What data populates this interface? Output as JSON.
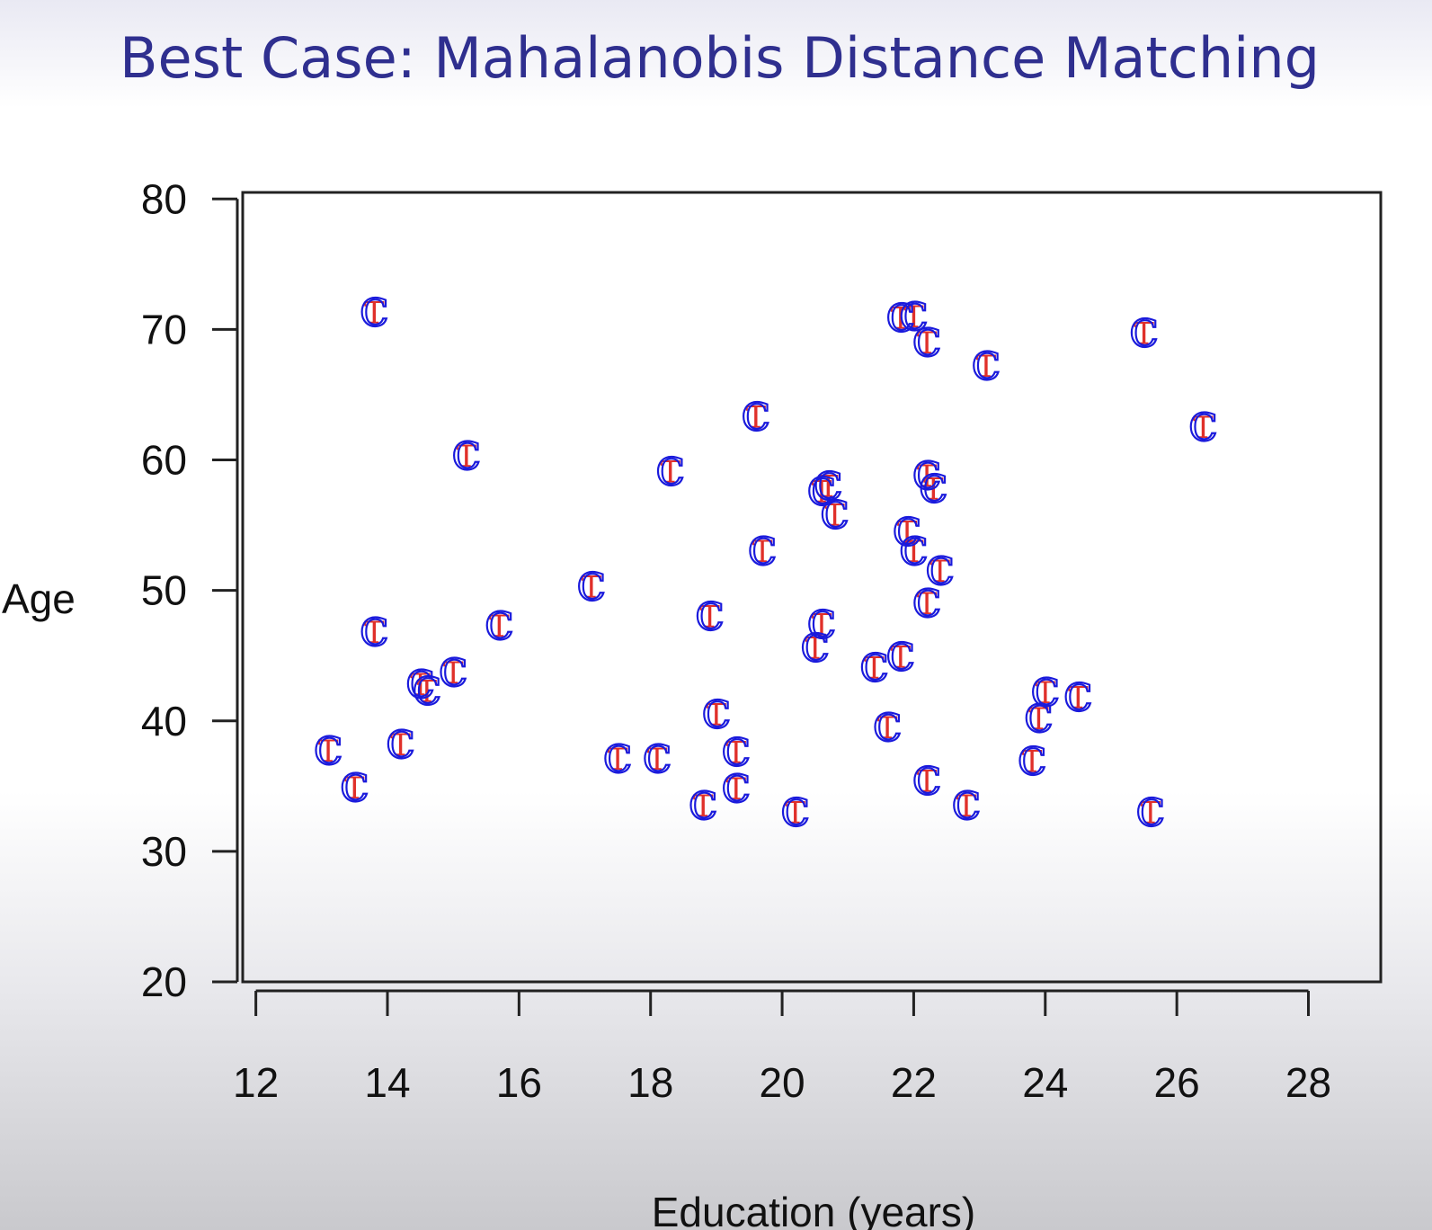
{
  "chart_data": {
    "type": "scatter",
    "title": "Best Case: Mahalanobis Distance Matching",
    "xlabel": "Education (years)",
    "ylabel": "Age",
    "xlim": [
      11.8,
      29.1
    ],
    "ylim": [
      20,
      80.5
    ],
    "x_ticks": [
      "12",
      "14",
      "16",
      "18",
      "20",
      "22",
      "24",
      "26",
      "28"
    ],
    "y_ticks": [
      "20",
      "30",
      "40",
      "50",
      "60",
      "70",
      "80"
    ],
    "grid": false,
    "legend": "none",
    "colors": {
      "control": "#1a1adc",
      "treated": "#e0302a",
      "title": "#2f2f8f"
    },
    "series": [
      {
        "marker": "C",
        "points": [
          [
            13.8,
            71.3
          ],
          [
            15.2,
            60.3
          ],
          [
            13.8,
            46.8
          ],
          [
            14.5,
            42.8
          ],
          [
            14.6,
            42.3
          ],
          [
            15.0,
            43.7
          ],
          [
            15.7,
            47.3
          ],
          [
            13.1,
            37.7
          ],
          [
            13.5,
            34.9
          ],
          [
            14.2,
            38.2
          ],
          [
            17.1,
            50.3
          ],
          [
            17.5,
            37.1
          ],
          [
            18.1,
            37.1
          ],
          [
            18.3,
            59.1
          ],
          [
            18.9,
            48.0
          ],
          [
            19.0,
            40.5
          ],
          [
            18.8,
            33.5
          ],
          [
            19.3,
            37.6
          ],
          [
            19.3,
            34.8
          ],
          [
            19.6,
            63.3
          ],
          [
            19.7,
            53.0
          ],
          [
            20.2,
            33.0
          ],
          [
            20.5,
            45.6
          ],
          [
            20.6,
            47.4
          ],
          [
            20.6,
            57.6
          ],
          [
            20.7,
            58.0
          ],
          [
            20.8,
            55.8
          ],
          [
            21.4,
            44.1
          ],
          [
            21.6,
            39.5
          ],
          [
            21.8,
            70.9
          ],
          [
            21.8,
            44.9
          ],
          [
            22.0,
            71.0
          ],
          [
            22.2,
            69.0
          ],
          [
            21.9,
            54.5
          ],
          [
            22.0,
            53.0
          ],
          [
            22.2,
            58.8
          ],
          [
            22.3,
            57.8
          ],
          [
            22.4,
            51.5
          ],
          [
            22.2,
            49.0
          ],
          [
            22.2,
            35.4
          ],
          [
            22.8,
            33.5
          ],
          [
            23.1,
            67.2
          ],
          [
            23.8,
            36.9
          ],
          [
            23.9,
            40.2
          ],
          [
            24.0,
            42.2
          ],
          [
            24.5,
            41.8
          ],
          [
            25.5,
            69.7
          ],
          [
            25.6,
            33.0
          ],
          [
            26.4,
            62.5
          ]
        ]
      },
      {
        "marker": "T",
        "points": [
          [
            13.8,
            71.3
          ],
          [
            15.2,
            60.3
          ],
          [
            13.8,
            46.8
          ],
          [
            14.5,
            42.8
          ],
          [
            14.6,
            42.3
          ],
          [
            15.0,
            43.7
          ],
          [
            15.7,
            47.3
          ],
          [
            13.1,
            37.7
          ],
          [
            13.5,
            34.9
          ],
          [
            14.2,
            38.2
          ],
          [
            17.1,
            50.3
          ],
          [
            17.5,
            37.1
          ],
          [
            18.1,
            37.1
          ],
          [
            18.3,
            59.1
          ],
          [
            18.9,
            48.0
          ],
          [
            19.0,
            40.5
          ],
          [
            18.8,
            33.5
          ],
          [
            19.3,
            37.6
          ],
          [
            19.3,
            34.8
          ],
          [
            19.6,
            63.3
          ],
          [
            19.7,
            53.0
          ],
          [
            20.2,
            33.0
          ],
          [
            20.5,
            45.6
          ],
          [
            20.6,
            47.4
          ],
          [
            20.6,
            57.6
          ],
          [
            20.7,
            58.0
          ],
          [
            20.8,
            55.8
          ],
          [
            21.4,
            44.1
          ],
          [
            21.6,
            39.5
          ],
          [
            21.8,
            70.9
          ],
          [
            21.8,
            44.9
          ],
          [
            22.0,
            71.0
          ],
          [
            22.2,
            69.0
          ],
          [
            21.9,
            54.5
          ],
          [
            22.0,
            53.0
          ],
          [
            22.2,
            58.8
          ],
          [
            22.3,
            57.8
          ],
          [
            22.4,
            51.5
          ],
          [
            22.2,
            49.0
          ],
          [
            22.2,
            35.4
          ],
          [
            22.8,
            33.5
          ],
          [
            23.1,
            67.2
          ],
          [
            23.8,
            36.9
          ],
          [
            23.9,
            40.2
          ],
          [
            24.0,
            42.2
          ],
          [
            24.5,
            41.8
          ],
          [
            25.5,
            69.7
          ],
          [
            25.6,
            33.0
          ],
          [
            26.4,
            62.5
          ]
        ]
      }
    ]
  }
}
